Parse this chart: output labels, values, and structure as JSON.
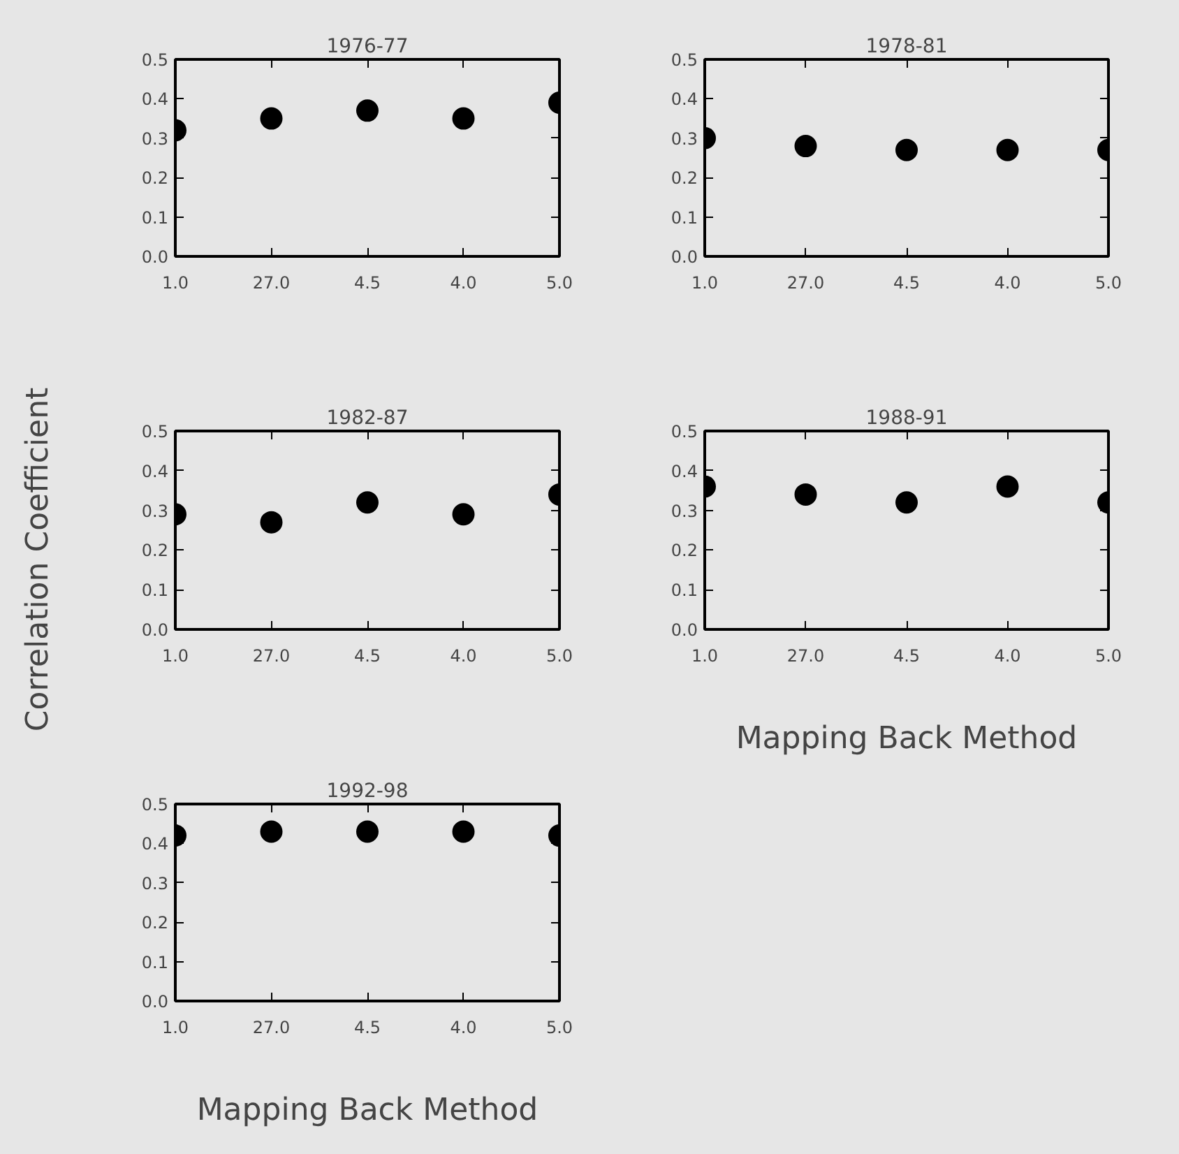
{
  "chart_data": [
    {
      "type": "scatter",
      "title": "1976-77",
      "categories": [
        "1.0",
        "27.0",
        "4.5",
        "4.0",
        "5.0"
      ],
      "series": [
        {
          "color": "#000000",
          "values": [
            0.32,
            0.35,
            0.37,
            0.35,
            0.39
          ]
        }
      ],
      "ylim": [
        0,
        0.5
      ],
      "yticks": [
        {
          "value": 0,
          "label": "0.0"
        },
        {
          "value": 0.1,
          "label": "0.1"
        },
        {
          "value": 0.2,
          "label": "0.2"
        },
        {
          "value": 0.3,
          "label": "0.3"
        },
        {
          "value": 0.4,
          "label": "0.4"
        },
        {
          "value": 0.5,
          "label": "0.5"
        }
      ],
      "marker": "circle"
    },
    {
      "type": "scatter",
      "title": "1978-81",
      "categories": [
        "1.0",
        "27.0",
        "4.5",
        "4.0",
        "5.0"
      ],
      "series": [
        {
          "color": "#000000",
          "values": [
            0.3,
            0.28,
            0.27,
            0.27,
            0.27
          ]
        }
      ],
      "ylim": [
        0,
        0.5
      ],
      "yticks": [
        {
          "value": 0,
          "label": "0.0"
        },
        {
          "value": 0.1,
          "label": "0.1"
        },
        {
          "value": 0.2,
          "label": "0.2"
        },
        {
          "value": 0.3,
          "label": "0.3"
        },
        {
          "value": 0.4,
          "label": "0.4"
        },
        {
          "value": 0.5,
          "label": "0.5"
        }
      ],
      "marker": "circle"
    },
    {
      "type": "scatter",
      "title": "1982-87",
      "ylabel": "Correlation  Coefficient",
      "categories": [
        "1.0",
        "27.0",
        "4.5",
        "4.0",
        "5.0"
      ],
      "series": [
        {
          "color": "#000000",
          "values": [
            0.29,
            0.27,
            0.32,
            0.29,
            0.34
          ]
        }
      ],
      "ylim": [
        0,
        0.5
      ],
      "yticks": [
        {
          "value": 0,
          "label": "0.0"
        },
        {
          "value": 0.1,
          "label": "0.1"
        },
        {
          "value": 0.2,
          "label": "0.2"
        },
        {
          "value": 0.3,
          "label": "0.3"
        },
        {
          "value": 0.4,
          "label": "0.4"
        },
        {
          "value": 0.5,
          "label": "0.5"
        }
      ],
      "marker": "circle"
    },
    {
      "type": "scatter",
      "title": "1988-91",
      "xlabel": "Mapping Back Method",
      "categories": [
        "1.0",
        "27.0",
        "4.5",
        "4.0",
        "5.0"
      ],
      "series": [
        {
          "color": "#000000",
          "values": [
            0.36,
            0.34,
            0.32,
            0.36,
            0.32
          ]
        }
      ],
      "ylim": [
        0,
        0.5
      ],
      "yticks": [
        {
          "value": 0,
          "label": "0.0"
        },
        {
          "value": 0.1,
          "label": "0.1"
        },
        {
          "value": 0.2,
          "label": "0.2"
        },
        {
          "value": 0.3,
          "label": "0.3"
        },
        {
          "value": 0.4,
          "label": "0.4"
        },
        {
          "value": 0.5,
          "label": "0.5"
        }
      ],
      "marker": "circle"
    },
    {
      "type": "scatter",
      "title": "1992-98",
      "xlabel": "Mapping Back Method",
      "categories": [
        "1.0",
        "27.0",
        "4.5",
        "4.0",
        "5.0"
      ],
      "series": [
        {
          "color": "#000000",
          "values": [
            0.42,
            0.43,
            0.43,
            0.43,
            0.42
          ]
        }
      ],
      "ylim": [
        0,
        0.5
      ],
      "yticks": [
        {
          "value": 0,
          "label": "0.0"
        },
        {
          "value": 0.1,
          "label": "0.1"
        },
        {
          "value": 0.2,
          "label": "0.2"
        },
        {
          "value": 0.3,
          "label": "0.3"
        },
        {
          "value": 0.4,
          "label": "0.4"
        },
        {
          "value": 0.5,
          "label": "0.5"
        }
      ],
      "marker": "circle"
    }
  ]
}
